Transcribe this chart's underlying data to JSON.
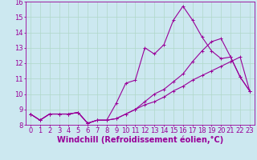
{
  "xlabel": "Windchill (Refroidissement éolien,°C)",
  "xlim": [
    -0.5,
    23.5
  ],
  "ylim": [
    8,
    16
  ],
  "xticks": [
    0,
    1,
    2,
    3,
    4,
    5,
    6,
    7,
    8,
    9,
    10,
    11,
    12,
    13,
    14,
    15,
    16,
    17,
    18,
    19,
    20,
    21,
    22,
    23
  ],
  "yticks": [
    8,
    9,
    10,
    11,
    12,
    13,
    14,
    15,
    16
  ],
  "background_color": "#cce8f0",
  "grid_color": "#b0d8c8",
  "line_color": "#990099",
  "line1_x": [
    0,
    1,
    2,
    3,
    4,
    5,
    6,
    7,
    8,
    9,
    10,
    11,
    12,
    13,
    14,
    15,
    16,
    17,
    18,
    19,
    20,
    21,
    22,
    23
  ],
  "line1_y": [
    8.7,
    8.3,
    8.7,
    8.7,
    8.7,
    8.8,
    8.1,
    8.3,
    8.3,
    8.4,
    8.7,
    9.0,
    9.3,
    9.5,
    9.8,
    10.2,
    10.5,
    10.9,
    11.2,
    11.5,
    11.8,
    12.1,
    12.4,
    10.2
  ],
  "line2_x": [
    0,
    1,
    2,
    3,
    4,
    5,
    6,
    7,
    8,
    9,
    10,
    11,
    12,
    13,
    14,
    15,
    16,
    17,
    18,
    19,
    20,
    21,
    22,
    23
  ],
  "line2_y": [
    8.7,
    8.3,
    8.7,
    8.7,
    8.7,
    8.8,
    8.1,
    8.3,
    8.3,
    9.4,
    10.7,
    10.9,
    13.0,
    12.6,
    13.2,
    14.8,
    15.7,
    14.8,
    13.7,
    12.8,
    12.3,
    12.4,
    11.1,
    10.2
  ],
  "line3_x": [
    0,
    1,
    2,
    3,
    4,
    5,
    6,
    7,
    8,
    9,
    10,
    11,
    12,
    13,
    14,
    15,
    16,
    17,
    18,
    19,
    20,
    21,
    22,
    23
  ],
  "line3_y": [
    8.7,
    8.3,
    8.7,
    8.7,
    8.7,
    8.8,
    8.1,
    8.3,
    8.3,
    8.4,
    8.7,
    9.0,
    9.5,
    10.0,
    10.3,
    10.8,
    11.3,
    12.1,
    12.8,
    13.4,
    13.6,
    12.4,
    11.1,
    10.2
  ],
  "font_size": 6,
  "marker": "+",
  "marker_size": 3,
  "linewidth": 0.8
}
